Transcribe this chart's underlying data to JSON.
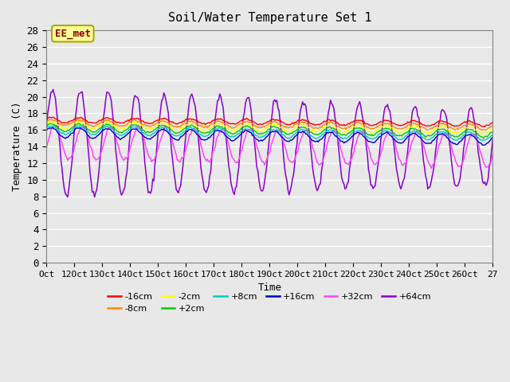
{
  "title": "Soil/Water Temperature Set 1",
  "xlabel": "Time",
  "ylabel": "Temperature (C)",
  "ylim": [
    0,
    28
  ],
  "yticks": [
    0,
    2,
    4,
    6,
    8,
    10,
    12,
    14,
    16,
    18,
    20,
    22,
    24,
    26,
    28
  ],
  "xtick_positions": [
    0,
    1,
    2,
    3,
    4,
    5,
    6,
    7,
    8,
    9,
    10,
    11,
    12,
    13,
    14,
    15,
    16
  ],
  "xtick_labels": [
    "Oct",
    "12Oct",
    "13Oct",
    "14Oct",
    "15Oct",
    "16Oct",
    "17Oct",
    "18Oct",
    "19Oct",
    "20Oct",
    "21Oct",
    "22Oct",
    "23Oct",
    "24Oct",
    "25Oct",
    "26Oct",
    "27"
  ],
  "annotation_text": "EE_met",
  "annotation_color": "#8B0000",
  "annotation_bg": "#FFFF99",
  "annotation_border": "#AAAA00",
  "series_names": [
    "-16cm",
    "-8cm",
    "-2cm",
    "+2cm",
    "+8cm",
    "+16cm",
    "+32cm",
    "+64cm"
  ],
  "series_colors": [
    "#FF0000",
    "#FF8800",
    "#FFFF00",
    "#00CC00",
    "#00CCCC",
    "#0000CC",
    "#FF44FF",
    "#8800CC"
  ],
  "series_base": [
    17.2,
    16.9,
    16.6,
    16.3,
    16.0,
    15.7,
    14.5,
    14.5
  ],
  "series_amplitude": [
    0.3,
    0.35,
    0.4,
    0.45,
    0.5,
    0.6,
    2.0,
    6.5
  ],
  "series_trend": [
    -0.03,
    -0.035,
    -0.04,
    -0.045,
    -0.05,
    -0.055,
    -0.06,
    -0.04
  ],
  "bg_color": "#E8E8E8",
  "n_points": 400,
  "n_days": 16
}
